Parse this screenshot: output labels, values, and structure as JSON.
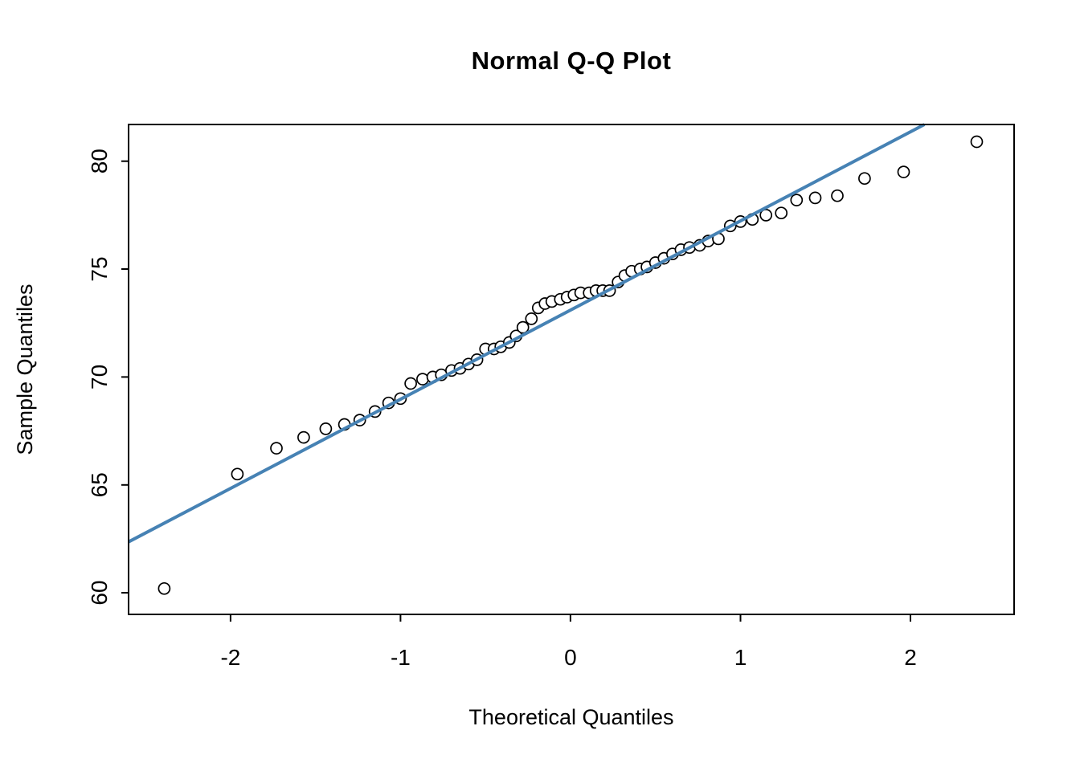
{
  "page": {
    "background": "#ffffff",
    "foreground": "#000000"
  },
  "chart_data": {
    "type": "scatter",
    "title": "Normal Q-Q Plot",
    "xlabel": "Theoretical Quantiles",
    "ylabel": "Sample Quantiles",
    "xlim": [
      -2.6,
      2.61
    ],
    "ylim": [
      59.0,
      81.7
    ],
    "x_ticks": [
      -2,
      -1,
      0,
      1,
      2
    ],
    "y_ticks": [
      60,
      65,
      70,
      75,
      80
    ],
    "grid": false,
    "legend": "none",
    "point_style": {
      "shape": "open-circle",
      "stroke_color": "#000000",
      "fill_color": "#ffffff",
      "radius": 7,
      "stroke_width": 1.7
    },
    "reference_line": {
      "name": "qqline",
      "slope": 4.13,
      "intercept": 73.1,
      "color": "#4682B4",
      "width": 4
    },
    "series": [
      {
        "name": "sample-quantiles",
        "x": [
          -2.39,
          -1.96,
          -1.73,
          -1.57,
          -1.44,
          -1.33,
          -1.24,
          -1.15,
          -1.07,
          -1.0,
          -0.94,
          -0.87,
          -0.81,
          -0.76,
          -0.7,
          -0.65,
          -0.6,
          -0.55,
          -0.5,
          -0.45,
          -0.41,
          -0.36,
          -0.32,
          -0.28,
          -0.23,
          -0.19,
          -0.15,
          -0.11,
          -0.06,
          -0.02,
          0.02,
          0.06,
          0.11,
          0.15,
          0.19,
          0.23,
          0.28,
          0.32,
          0.36,
          0.41,
          0.45,
          0.5,
          0.55,
          0.6,
          0.65,
          0.7,
          0.76,
          0.81,
          0.87,
          0.94,
          1.0,
          1.07,
          1.15,
          1.24,
          1.33,
          1.44,
          1.57,
          1.73,
          1.96,
          2.39
        ],
        "y": [
          60.2,
          65.5,
          66.7,
          67.2,
          67.6,
          67.8,
          68.0,
          68.4,
          68.8,
          69.0,
          69.7,
          69.9,
          70.0,
          70.1,
          70.3,
          70.4,
          70.6,
          70.8,
          71.3,
          71.3,
          71.4,
          71.6,
          71.9,
          72.3,
          72.7,
          73.2,
          73.4,
          73.5,
          73.6,
          73.7,
          73.8,
          73.9,
          73.9,
          74.0,
          74.0,
          74.0,
          74.4,
          74.7,
          74.9,
          75.0,
          75.1,
          75.3,
          75.5,
          75.7,
          75.9,
          76.0,
          76.1,
          76.3,
          76.4,
          77.0,
          77.2,
          77.3,
          77.5,
          77.6,
          78.2,
          78.3,
          78.4,
          79.2,
          79.5,
          80.9
        ]
      }
    ]
  }
}
